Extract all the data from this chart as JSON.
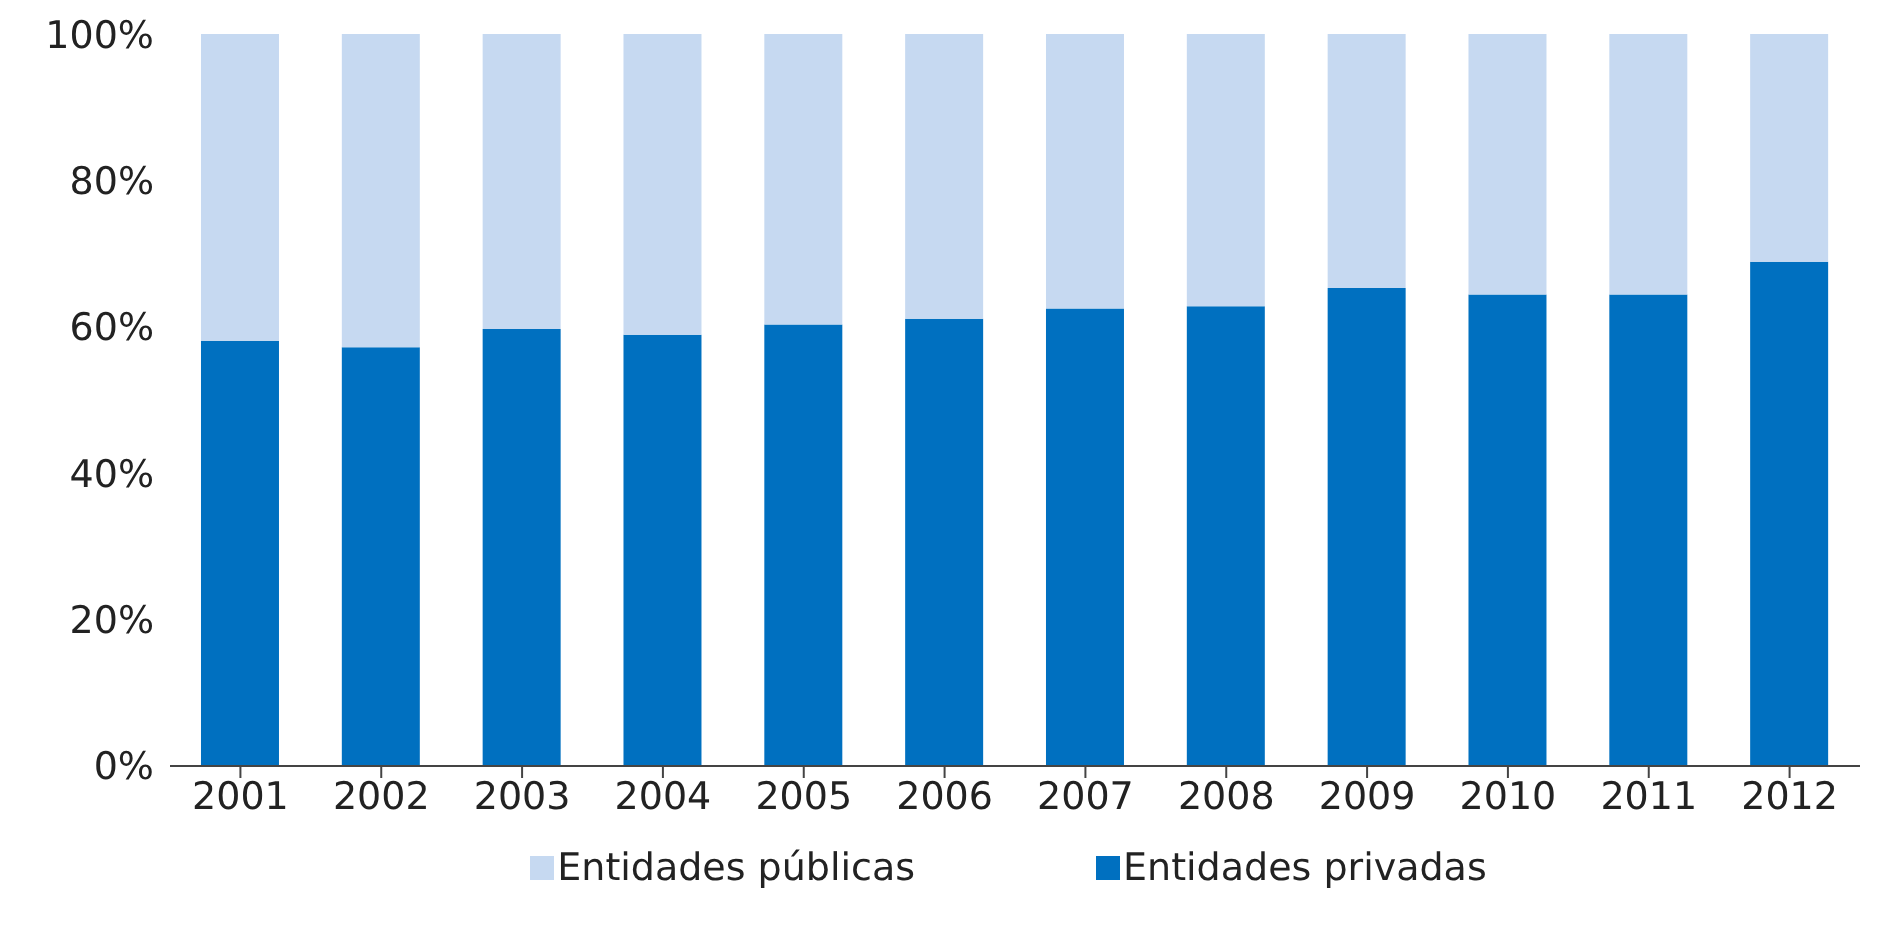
{
  "chart_data": {
    "type": "bar",
    "stacked": true,
    "categories": [
      "2001",
      "2002",
      "2003",
      "2004",
      "2005",
      "2006",
      "2007",
      "2008",
      "2009",
      "2010",
      "2011",
      "2012"
    ],
    "series": [
      {
        "name": "Entidades privadas",
        "color": "#0070c0",
        "values": [
          58.1,
          57.2,
          59.7,
          58.9,
          60.3,
          61.1,
          62.5,
          62.8,
          65.3,
          64.4,
          64.4,
          68.9
        ]
      },
      {
        "name": "Entidades públicas",
        "color": "#c6d9f1",
        "values": [
          41.9,
          42.8,
          40.3,
          41.1,
          39.7,
          38.9,
          37.5,
          37.2,
          34.7,
          35.6,
          35.6,
          31.1
        ]
      }
    ],
    "ylim": [
      0,
      100
    ],
    "yticks": [
      {
        "value": 0,
        "label": "0%"
      },
      {
        "value": 20,
        "label": "20%"
      },
      {
        "value": 40,
        "label": "40%"
      },
      {
        "value": 60,
        "label": "60%"
      },
      {
        "value": 80,
        "label": "80%"
      },
      {
        "value": 100,
        "label": "100%"
      }
    ],
    "grid": false,
    "legend": "bottom"
  }
}
